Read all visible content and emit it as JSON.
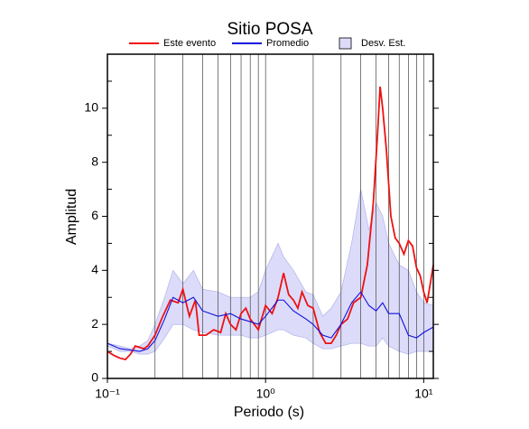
{
  "chart_data": {
    "type": "line",
    "title": "Sitio POSA",
    "xlabel": "Periodo (s)",
    "ylabel": "Amplitud",
    "xscale": "log",
    "xlim": [
      0.1,
      11.5
    ],
    "ylim": [
      0,
      12
    ],
    "xticks": [
      {
        "value": 0.1,
        "label": "10⁻¹"
      },
      {
        "value": 1,
        "label": "10⁰"
      },
      {
        "value": 10,
        "label": "10¹"
      }
    ],
    "xticks_minor": [
      0.2,
      0.3,
      0.4,
      0.5,
      0.6,
      0.7,
      0.8,
      0.9,
      2,
      3,
      4,
      5,
      6,
      7,
      8,
      9
    ],
    "yticks": [
      0,
      2,
      4,
      6,
      8,
      10
    ],
    "yticks_minor": [
      1,
      3,
      5,
      7,
      9,
      11
    ],
    "grid": true,
    "legend": "top",
    "series": [
      {
        "name": "Este evento",
        "color": "#ee1111",
        "x": [
          0.1,
          0.11,
          0.12,
          0.13,
          0.14,
          0.15,
          0.16,
          0.17,
          0.18,
          0.2,
          0.22,
          0.25,
          0.28,
          0.3,
          0.33,
          0.36,
          0.38,
          0.42,
          0.47,
          0.52,
          0.56,
          0.6,
          0.65,
          0.7,
          0.75,
          0.8,
          0.9,
          1.0,
          1.1,
          1.2,
          1.3,
          1.4,
          1.5,
          1.6,
          1.7,
          1.85,
          2.0,
          2.2,
          2.4,
          2.6,
          2.8,
          3.0,
          3.3,
          3.6,
          4.0,
          4.4,
          4.8,
          5.1,
          5.3,
          5.5,
          5.8,
          6.2,
          6.6,
          7.0,
          7.5,
          8.0,
          8.5,
          9.0,
          9.5,
          10.0,
          10.5,
          11.0,
          11.5
        ],
        "values": [
          1.0,
          0.85,
          0.75,
          0.7,
          0.9,
          1.2,
          1.15,
          1.1,
          1.2,
          1.6,
          2.2,
          2.9,
          2.8,
          3.3,
          2.3,
          2.9,
          1.6,
          1.6,
          1.8,
          1.7,
          2.4,
          2.0,
          1.8,
          2.4,
          2.6,
          2.2,
          1.8,
          2.7,
          2.4,
          3.0,
          3.9,
          3.1,
          2.9,
          2.6,
          3.2,
          2.7,
          2.6,
          1.7,
          1.3,
          1.3,
          1.6,
          2.0,
          2.2,
          2.8,
          3.0,
          4.2,
          6.5,
          9.0,
          10.8,
          10.0,
          8.5,
          6.0,
          5.2,
          5.0,
          4.6,
          5.1,
          4.9,
          4.1,
          3.8,
          3.2,
          2.8,
          3.5,
          4.2
        ]
      },
      {
        "name": "Promedio",
        "color": "#1111dd",
        "x": [
          0.1,
          0.12,
          0.14,
          0.16,
          0.18,
          0.2,
          0.23,
          0.26,
          0.3,
          0.35,
          0.4,
          0.5,
          0.6,
          0.7,
          0.8,
          0.9,
          1.0,
          1.2,
          1.3,
          1.5,
          1.8,
          2.0,
          2.3,
          2.6,
          3.0,
          3.5,
          4.0,
          4.5,
          5.0,
          5.5,
          6.0,
          7.0,
          8.0,
          9.0,
          10.0,
          11.5
        ],
        "values": [
          1.3,
          1.1,
          1.05,
          1.0,
          1.1,
          1.4,
          2.2,
          3.0,
          2.8,
          3.0,
          2.5,
          2.3,
          2.4,
          2.2,
          2.1,
          2.0,
          2.3,
          2.9,
          2.9,
          2.5,
          2.2,
          2.0,
          1.6,
          1.5,
          2.0,
          2.8,
          3.2,
          2.7,
          2.5,
          2.8,
          2.4,
          2.4,
          1.6,
          1.5,
          1.7,
          1.9
        ]
      }
    ],
    "band": {
      "name": "Desv. Est.",
      "color": "#dcdcfa",
      "edge": "#b8b8ee",
      "x": [
        0.1,
        0.12,
        0.14,
        0.16,
        0.18,
        0.2,
        0.23,
        0.26,
        0.3,
        0.35,
        0.4,
        0.5,
        0.6,
        0.7,
        0.8,
        0.9,
        1.0,
        1.2,
        1.3,
        1.5,
        1.8,
        2.0,
        2.3,
        2.6,
        3.0,
        3.5,
        4.0,
        4.5,
        5.0,
        5.5,
        6.0,
        7.0,
        8.0,
        9.0,
        10.0,
        11.5
      ],
      "upper": [
        1.3,
        1.2,
        1.1,
        1.2,
        1.4,
        2.0,
        3.0,
        4.0,
        3.5,
        4.0,
        3.3,
        3.2,
        3.0,
        3.0,
        3.0,
        3.2,
        4.0,
        5.0,
        4.5,
        4.0,
        3.2,
        3.1,
        2.3,
        2.6,
        3.2,
        5.0,
        7.0,
        5.5,
        6.5,
        6.0,
        5.0,
        4.2,
        4.0,
        3.2,
        2.8,
        2.7
      ],
      "lower": [
        1.2,
        1.0,
        1.0,
        0.9,
        0.9,
        1.0,
        1.5,
        2.0,
        2.0,
        1.8,
        1.7,
        1.6,
        1.6,
        1.6,
        1.5,
        1.5,
        1.6,
        1.8,
        1.8,
        1.6,
        1.5,
        1.3,
        1.1,
        1.1,
        1.2,
        1.3,
        1.3,
        1.2,
        1.2,
        1.5,
        1.2,
        1.0,
        0.9,
        1.0,
        1.0,
        1.0
      ]
    }
  }
}
